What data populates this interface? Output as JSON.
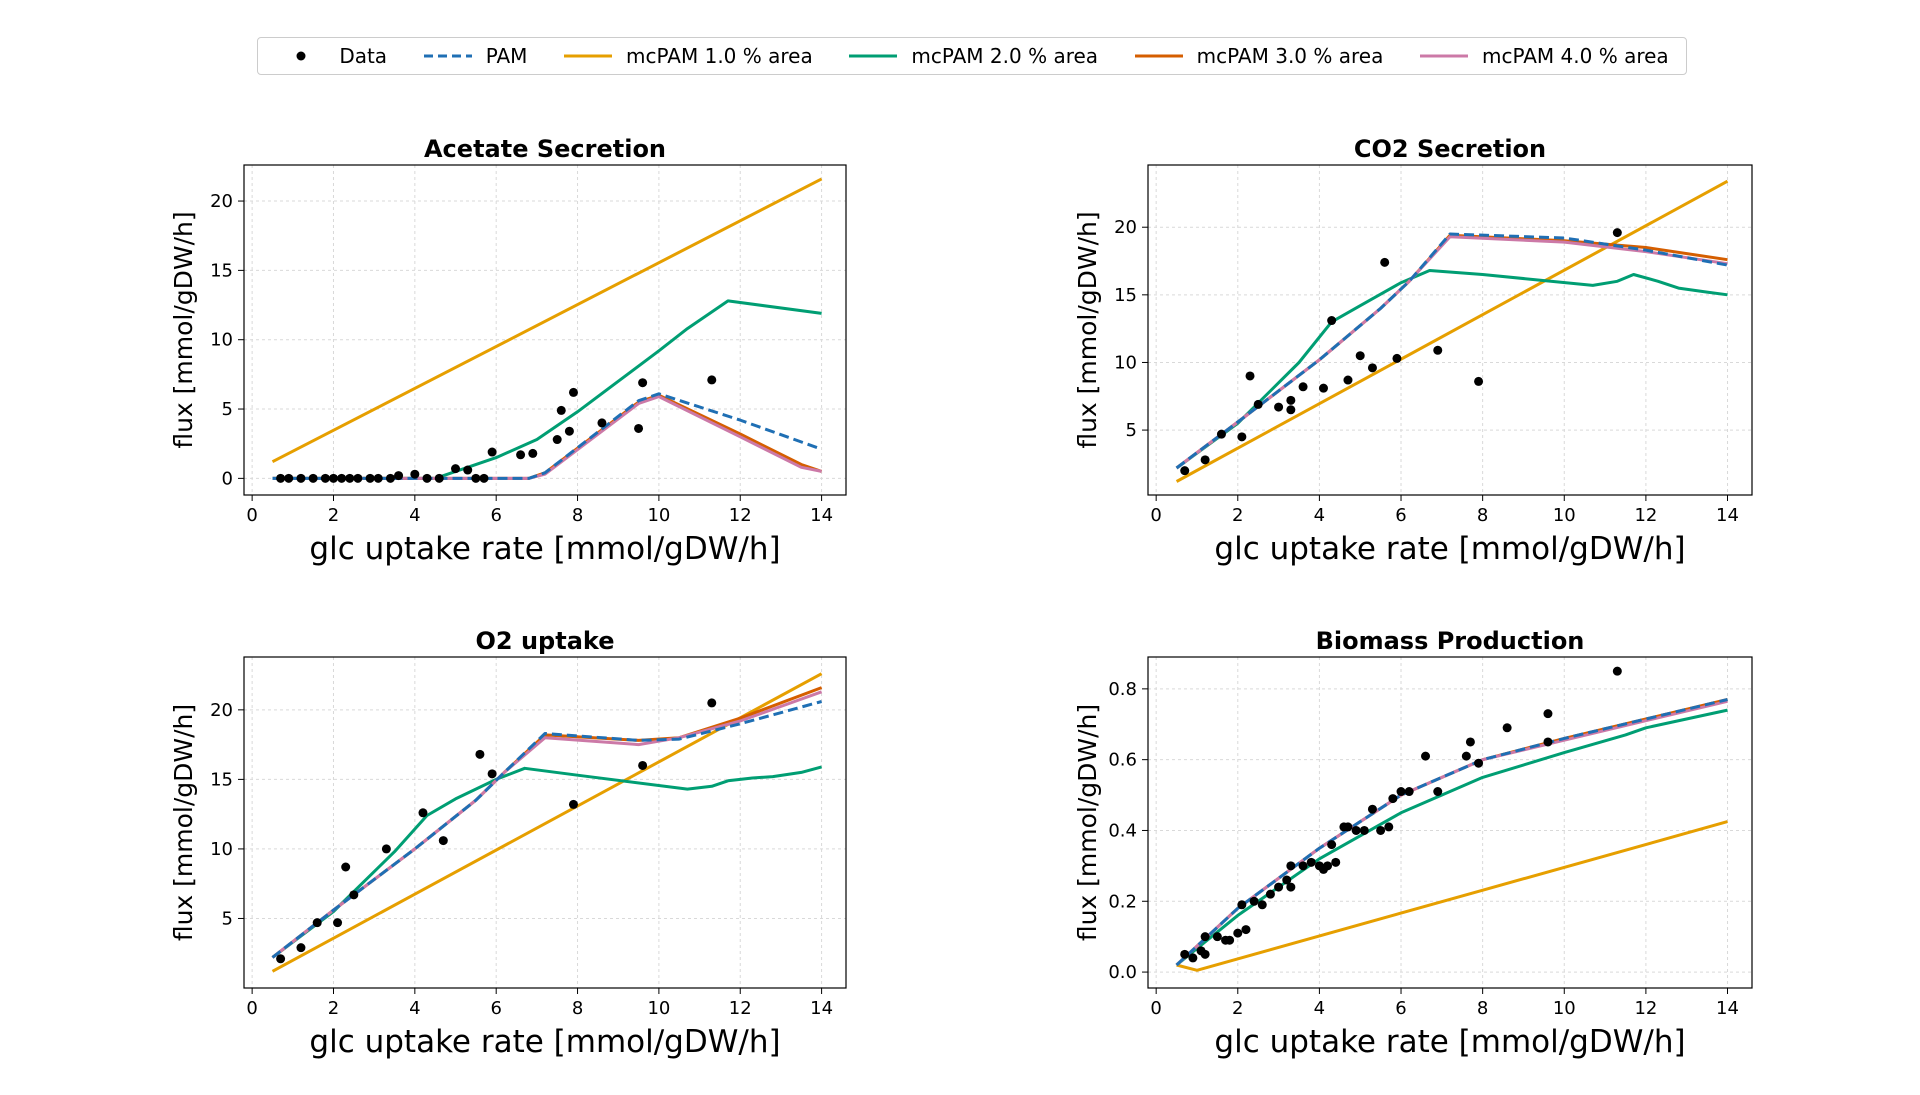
{
  "legend": [
    {
      "label": "Data",
      "kind": "marker",
      "color": "#000000"
    },
    {
      "label": "PAM",
      "kind": "dashed",
      "color": "#1f6fb4"
    },
    {
      "label": "mcPAM 1.0 % area",
      "kind": "line",
      "color": "#e69f00"
    },
    {
      "label": "mcPAM 2.0 % area",
      "kind": "line",
      "color": "#009e73"
    },
    {
      "label": "mcPAM 3.0 % area",
      "kind": "line",
      "color": "#d55e00"
    },
    {
      "label": "mcPAM 4.0 % area",
      "kind": "line",
      "color": "#cc79a7"
    }
  ],
  "chart_data": [
    {
      "type": "line",
      "title": "Acetate Secretion",
      "xlabel": "glc uptake rate [mmol/gDW/h]",
      "ylabel": "flux [mmol/gDW/h]",
      "xlim": [
        -0.2,
        14.6
      ],
      "ylim": [
        -1.2,
        22.6
      ],
      "xticks": [
        0,
        2,
        4,
        6,
        8,
        10,
        12,
        14
      ],
      "yticks": [
        0,
        5,
        10,
        15,
        20
      ],
      "grid": true,
      "series": [
        {
          "name": "mcPAM 1.0 % area",
          "color": "#e69f00",
          "x": [
            0.5,
            14
          ],
          "y": [
            1.2,
            21.6
          ]
        },
        {
          "name": "mcPAM 2.0 % area",
          "color": "#009e73",
          "x": [
            0.5,
            4.5,
            6.0,
            7.0,
            8.0,
            9.0,
            10.0,
            10.7,
            11.7,
            14.0
          ],
          "y": [
            0,
            0,
            1.5,
            2.8,
            4.8,
            7.0,
            9.2,
            10.8,
            12.8,
            11.9
          ]
        },
        {
          "name": "mcPAM 3.0 % area",
          "color": "#d55e00",
          "x": [
            0.5,
            6.8,
            7.2,
            9.5,
            10.0,
            12.0,
            13.5,
            14.0
          ],
          "y": [
            0,
            0,
            0.4,
            5.5,
            6.0,
            3.2,
            1.0,
            0.5
          ]
        },
        {
          "name": "mcPAM 4.0 % area",
          "color": "#cc79a7",
          "x": [
            0.5,
            6.8,
            7.2,
            9.5,
            10.0,
            12.0,
            13.5,
            14.0
          ],
          "y": [
            0,
            0,
            0.3,
            5.4,
            5.9,
            3.0,
            0.8,
            0.5
          ]
        },
        {
          "name": "PAM",
          "color": "#1f6fb4",
          "dashed": true,
          "x": [
            0.5,
            6.8,
            7.2,
            9.5,
            10.0,
            12.0,
            14.0
          ],
          "y": [
            0,
            0,
            0.4,
            5.6,
            6.1,
            4.2,
            2.1
          ]
        }
      ],
      "data_points": {
        "x": [
          0.7,
          0.9,
          1.2,
          1.5,
          1.8,
          2.0,
          2.2,
          2.4,
          2.6,
          2.9,
          3.1,
          3.4,
          3.6,
          4.0,
          4.3,
          4.6,
          5.0,
          5.3,
          5.5,
          5.7,
          5.9,
          6.6,
          6.9,
          7.5,
          7.6,
          7.8,
          7.9,
          8.6,
          9.5,
          9.6,
          11.3
        ],
        "y": [
          0,
          0,
          0,
          0,
          0,
          0,
          0,
          0,
          0,
          0,
          0,
          0,
          0.2,
          0.3,
          0,
          0,
          0.7,
          0.6,
          0,
          0,
          1.9,
          1.7,
          1.8,
          2.8,
          4.9,
          3.4,
          6.2,
          4.0,
          3.6,
          6.9,
          7.1
        ]
      }
    },
    {
      "type": "line",
      "title": "CO2 Secretion",
      "xlabel": "glc uptake rate [mmol/gDW/h]",
      "ylabel": "flux [mmol/gDW/h]",
      "xlim": [
        -0.2,
        14.6
      ],
      "ylim": [
        0.2,
        24.6
      ],
      "xticks": [
        0,
        2,
        4,
        6,
        8,
        10,
        12,
        14
      ],
      "yticks": [
        5,
        10,
        15,
        20
      ],
      "grid": true,
      "series": [
        {
          "name": "mcPAM 1.0 % area",
          "color": "#e69f00",
          "x": [
            0.5,
            14
          ],
          "y": [
            1.2,
            23.4
          ]
        },
        {
          "name": "mcPAM 2.0 % area",
          "color": "#009e73",
          "x": [
            0.5,
            2.0,
            3.5,
            4.3,
            5.0,
            6.0,
            6.7,
            8.0,
            10.7,
            11.3,
            11.7,
            12.3,
            12.8,
            13.5,
            14.0
          ],
          "y": [
            2.2,
            5.5,
            10.0,
            13.0,
            14.2,
            15.9,
            16.8,
            16.5,
            15.7,
            16.0,
            16.5,
            16.0,
            15.5,
            15.2,
            15.0
          ]
        },
        {
          "name": "mcPAM 3.0 % area",
          "color": "#d55e00",
          "x": [
            0.5,
            2.0,
            4.0,
            5.5,
            6.2,
            7.2,
            10.0,
            12.0,
            14.0
          ],
          "y": [
            2.2,
            5.6,
            10.2,
            14.0,
            16.0,
            19.4,
            19.0,
            18.5,
            17.6
          ]
        },
        {
          "name": "mcPAM 4.0 % area",
          "color": "#cc79a7",
          "x": [
            0.5,
            2.0,
            4.0,
            5.5,
            6.2,
            7.2,
            10.0,
            12.0,
            14.0
          ],
          "y": [
            2.2,
            5.6,
            10.2,
            14.0,
            16.0,
            19.3,
            18.9,
            18.2,
            17.3
          ]
        },
        {
          "name": "PAM",
          "color": "#1f6fb4",
          "dashed": true,
          "x": [
            0.5,
            2.0,
            4.0,
            5.5,
            6.2,
            7.2,
            10.0,
            12.0,
            14.0
          ],
          "y": [
            2.2,
            5.6,
            10.2,
            14.0,
            16.0,
            19.5,
            19.2,
            18.3,
            17.2
          ]
        }
      ],
      "data_points": {
        "x": [
          0.7,
          1.2,
          1.6,
          2.1,
          2.3,
          2.5,
          3.0,
          3.3,
          3.3,
          3.6,
          4.1,
          4.3,
          4.7,
          5.0,
          5.3,
          5.6,
          5.9,
          6.9,
          7.9,
          11.3
        ],
        "y": [
          2.0,
          2.8,
          4.7,
          4.5,
          9.0,
          6.9,
          6.7,
          6.5,
          7.2,
          8.2,
          8.1,
          13.1,
          8.7,
          10.5,
          9.6,
          17.4,
          10.3,
          10.9,
          8.6,
          19.6
        ]
      }
    },
    {
      "type": "line",
      "title": "O2 uptake",
      "xlabel": "glc uptake rate [mmol/gDW/h]",
      "ylabel": "flux [mmol/gDW/h]",
      "xlim": [
        -0.2,
        14.6
      ],
      "ylim": [
        0.0,
        23.8
      ],
      "xticks": [
        0,
        2,
        4,
        6,
        8,
        10,
        12,
        14
      ],
      "yticks": [
        5,
        10,
        15,
        20
      ],
      "grid": true,
      "series": [
        {
          "name": "mcPAM 1.0 % area",
          "color": "#e69f00",
          "x": [
            0.5,
            14
          ],
          "y": [
            1.2,
            22.6
          ]
        },
        {
          "name": "mcPAM 2.0 % area",
          "color": "#009e73",
          "x": [
            0.5,
            2.0,
            3.5,
            4.3,
            5.0,
            6.0,
            6.7,
            8.0,
            10.7,
            11.3,
            11.7,
            12.3,
            12.8,
            13.5,
            14.0
          ],
          "y": [
            2.2,
            5.5,
            9.8,
            12.4,
            13.6,
            15.0,
            15.8,
            15.3,
            14.3,
            14.5,
            14.9,
            15.1,
            15.2,
            15.5,
            15.9
          ]
        },
        {
          "name": "mcPAM 3.0 % area",
          "color": "#d55e00",
          "x": [
            0.5,
            2.0,
            4.0,
            5.5,
            6.2,
            7.2,
            9.5,
            10.5,
            12.0,
            14.0
          ],
          "y": [
            2.2,
            5.6,
            10.0,
            13.5,
            15.5,
            18.2,
            17.8,
            18.0,
            19.4,
            21.6
          ]
        },
        {
          "name": "mcPAM 4.0 % area",
          "color": "#cc79a7",
          "x": [
            0.5,
            2.0,
            4.0,
            5.5,
            6.2,
            7.2,
            9.5,
            10.5,
            12.0,
            14.0
          ],
          "y": [
            2.2,
            5.6,
            10.0,
            13.5,
            15.5,
            18.0,
            17.5,
            18.0,
            19.2,
            21.3
          ]
        },
        {
          "name": "PAM",
          "color": "#1f6fb4",
          "dashed": true,
          "x": [
            0.5,
            2.0,
            4.0,
            5.5,
            6.2,
            7.2,
            9.5,
            10.5,
            12.0,
            14.0
          ],
          "y": [
            2.2,
            5.6,
            10.0,
            13.5,
            15.5,
            18.3,
            17.8,
            17.9,
            19.0,
            20.6
          ]
        }
      ],
      "data_points": {
        "x": [
          0.7,
          1.2,
          1.6,
          2.1,
          2.3,
          2.5,
          3.3,
          4.2,
          4.7,
          5.6,
          5.9,
          7.9,
          9.6,
          11.3
        ],
        "y": [
          2.1,
          2.9,
          4.7,
          4.7,
          8.7,
          6.7,
          10.0,
          12.6,
          10.6,
          16.8,
          15.4,
          13.2,
          16.0,
          20.5
        ]
      }
    },
    {
      "type": "line",
      "title": "Biomass Production",
      "xlabel": "glc uptake rate [mmol/gDW/h]",
      "ylabel": "flux [mmol/gDW/h]",
      "xlim": [
        -0.2,
        14.6
      ],
      "ylim": [
        -0.045,
        0.89
      ],
      "xticks": [
        0,
        2,
        4,
        6,
        8,
        10,
        12,
        14
      ],
      "yticks": [
        0.0,
        0.2,
        0.4,
        0.6,
        0.8
      ],
      "grid": true,
      "series": [
        {
          "name": "mcPAM 1.0 % area",
          "color": "#e69f00",
          "x": [
            0.5,
            1.0,
            14.0
          ],
          "y": [
            0.02,
            0.005,
            0.425
          ]
        },
        {
          "name": "mcPAM 2.0 % area",
          "color": "#009e73",
          "x": [
            0.5,
            2.0,
            4.0,
            6.0,
            8.0,
            10.0,
            11.5,
            12.0,
            14.0
          ],
          "y": [
            0.02,
            0.16,
            0.32,
            0.45,
            0.55,
            0.62,
            0.67,
            0.69,
            0.74
          ]
        },
        {
          "name": "mcPAM 3.0 % area",
          "color": "#d55e00",
          "x": [
            0.5,
            2.0,
            4.0,
            6.0,
            8.0,
            10.0,
            12.0,
            14.0
          ],
          "y": [
            0.02,
            0.18,
            0.35,
            0.5,
            0.6,
            0.66,
            0.715,
            0.77
          ]
        },
        {
          "name": "mcPAM 4.0 % area",
          "color": "#cc79a7",
          "x": [
            0.5,
            2.0,
            4.0,
            6.0,
            8.0,
            10.0,
            12.0,
            14.0
          ],
          "y": [
            0.02,
            0.18,
            0.35,
            0.5,
            0.6,
            0.655,
            0.71,
            0.765
          ]
        },
        {
          "name": "PAM",
          "color": "#1f6fb4",
          "dashed": true,
          "x": [
            0.5,
            2.0,
            4.0,
            6.0,
            8.0,
            10.0,
            12.0,
            14.0
          ],
          "y": [
            0.02,
            0.18,
            0.35,
            0.5,
            0.6,
            0.66,
            0.715,
            0.77
          ]
        }
      ],
      "data_points": {
        "x": [
          0.7,
          0.9,
          1.1,
          1.2,
          1.2,
          1.5,
          1.7,
          1.8,
          2.0,
          2.1,
          2.2,
          2.4,
          2.6,
          2.8,
          3.0,
          3.2,
          3.3,
          3.3,
          3.6,
          3.8,
          4.0,
          4.1,
          4.2,
          4.3,
          4.4,
          4.6,
          4.7,
          4.9,
          5.1,
          5.3,
          5.5,
          5.7,
          5.8,
          6.0,
          6.2,
          6.6,
          6.9,
          7.6,
          7.7,
          7.9,
          8.6,
          9.6,
          9.6,
          11.3
        ],
        "y": [
          0.05,
          0.04,
          0.06,
          0.05,
          0.1,
          0.1,
          0.09,
          0.09,
          0.11,
          0.19,
          0.12,
          0.2,
          0.19,
          0.22,
          0.24,
          0.26,
          0.3,
          0.24,
          0.3,
          0.31,
          0.3,
          0.29,
          0.3,
          0.36,
          0.31,
          0.41,
          0.41,
          0.4,
          0.4,
          0.46,
          0.4,
          0.41,
          0.49,
          0.51,
          0.51,
          0.61,
          0.51,
          0.61,
          0.65,
          0.59,
          0.69,
          0.73,
          0.65,
          0.85
        ]
      }
    }
  ]
}
